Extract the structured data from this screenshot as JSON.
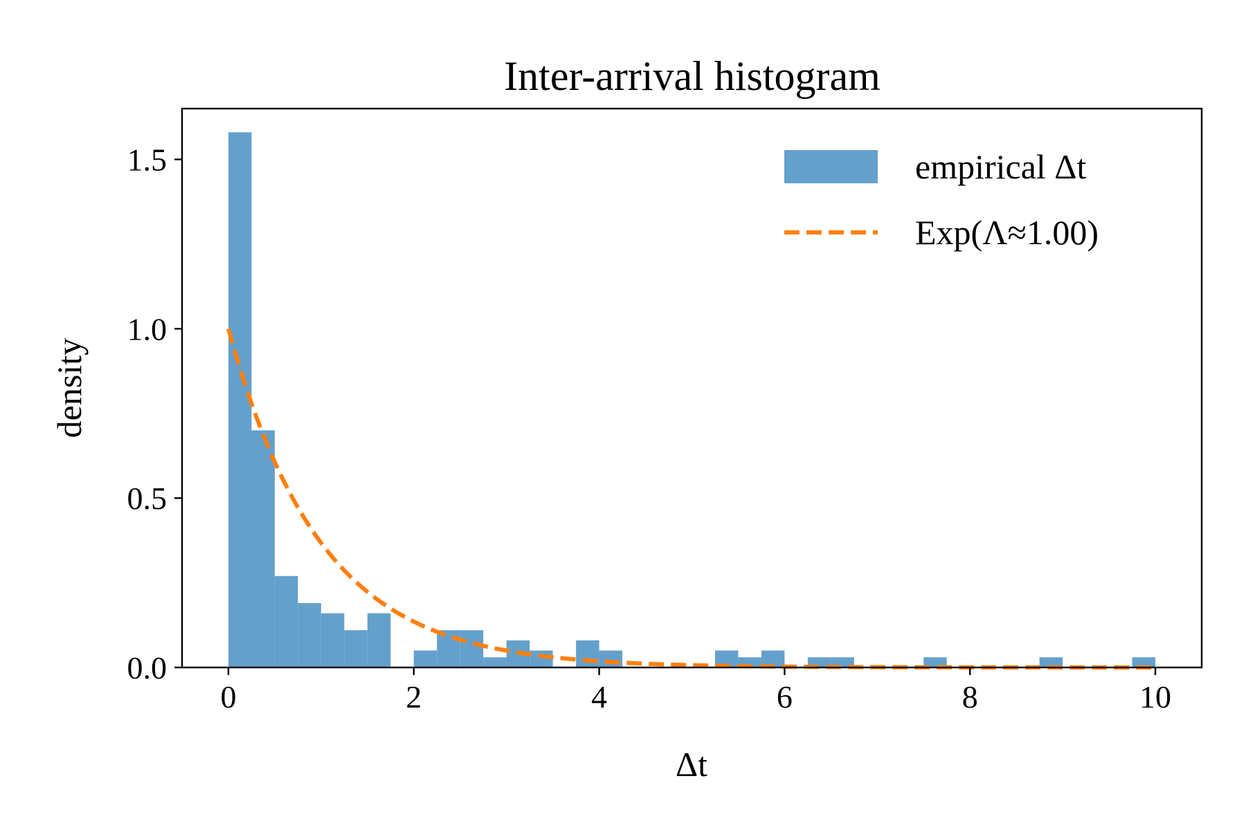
{
  "chart_data": {
    "type": "bar",
    "title": "Inter-arrival histogram",
    "xlabel": "Δt",
    "ylabel": "density",
    "xlim": [
      -0.5,
      10.5
    ],
    "ylim": [
      0,
      1.65
    ],
    "xticks": [
      0,
      2,
      4,
      6,
      8,
      10
    ],
    "yticks": [
      0.0,
      0.5,
      1.0,
      1.5
    ],
    "xtick_labels": [
      "0",
      "2",
      "4",
      "6",
      "8",
      "10"
    ],
    "ytick_labels": [
      "0.0",
      "0.5",
      "1.0",
      "1.5"
    ],
    "grid": false,
    "legend_position": "top-right",
    "bin_width": 0.25,
    "series": [
      {
        "name": "empirical Δt",
        "kind": "histogram",
        "color": "#64a0cc",
        "bins": [
          {
            "x0": 0.0,
            "value": 1.58
          },
          {
            "x0": 0.25,
            "value": 0.7
          },
          {
            "x0": 0.5,
            "value": 0.27
          },
          {
            "x0": 0.75,
            "value": 0.19
          },
          {
            "x0": 1.0,
            "value": 0.16
          },
          {
            "x0": 1.25,
            "value": 0.11
          },
          {
            "x0": 1.5,
            "value": 0.16
          },
          {
            "x0": 2.0,
            "value": 0.05
          },
          {
            "x0": 2.25,
            "value": 0.11
          },
          {
            "x0": 2.5,
            "value": 0.11
          },
          {
            "x0": 2.75,
            "value": 0.03
          },
          {
            "x0": 3.0,
            "value": 0.08
          },
          {
            "x0": 3.25,
            "value": 0.05
          },
          {
            "x0": 3.75,
            "value": 0.08
          },
          {
            "x0": 4.0,
            "value": 0.05
          },
          {
            "x0": 5.25,
            "value": 0.05
          },
          {
            "x0": 5.5,
            "value": 0.03
          },
          {
            "x0": 5.75,
            "value": 0.05
          },
          {
            "x0": 6.25,
            "value": 0.03
          },
          {
            "x0": 6.5,
            "value": 0.03
          },
          {
            "x0": 7.5,
            "value": 0.03
          },
          {
            "x0": 8.75,
            "value": 0.03
          },
          {
            "x0": 9.75,
            "value": 0.03
          }
        ]
      },
      {
        "name": "Exp(Λ≈1.00)",
        "kind": "line",
        "style": "dashed",
        "color": "#ff7f0e",
        "rate": 1.0,
        "x_range": [
          0,
          10
        ]
      }
    ]
  }
}
